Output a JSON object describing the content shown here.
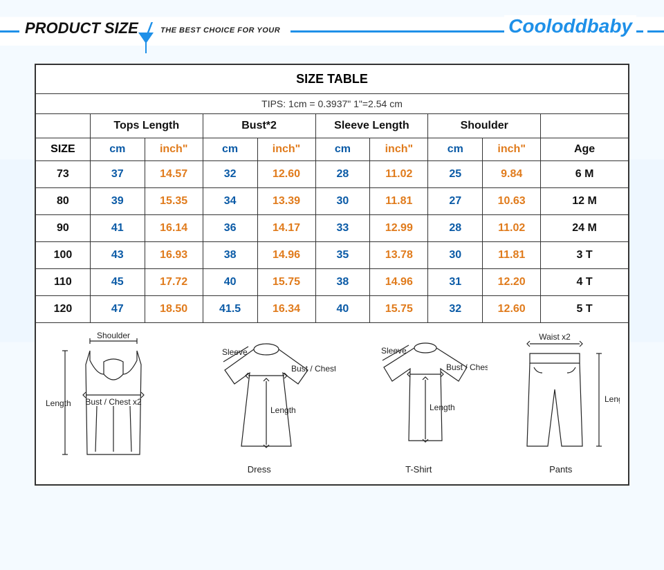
{
  "header": {
    "title": "PRODUCT SIZE",
    "slash": "/",
    "tagline": "THE BEST CHOICE FOR YOUR",
    "brand": "Cooloddbaby",
    "accent_color": "#1e90e8"
  },
  "table": {
    "title": "SIZE TABLE",
    "tips": "TIPS: 1cm = 0.3937\"   1\"=2.54 cm",
    "size_header": "SIZE",
    "age_header": "Age",
    "unit_cm": "cm",
    "unit_inch": "inch\"",
    "cm_color": "#0a5aa6",
    "inch_color": "#e07b1c",
    "text_color": "#111111",
    "border_color": "#333333",
    "background_color": "#ffffff",
    "groups": [
      "Tops Length",
      "Bust*2",
      "Sleeve Length",
      "Shoulder"
    ],
    "col_widths_pct": [
      9.2,
      9.2,
      9.8,
      9.2,
      9.8,
      9.2,
      9.8,
      9.2,
      9.8,
      14.8
    ],
    "rows": [
      {
        "size": "73",
        "tops_cm": "37",
        "tops_in": "14.57",
        "bust_cm": "32",
        "bust_in": "12.60",
        "sleeve_cm": "28",
        "sleeve_in": "11.02",
        "shoulder_cm": "25",
        "shoulder_in": "9.84",
        "age": "6 M"
      },
      {
        "size": "80",
        "tops_cm": "39",
        "tops_in": "15.35",
        "bust_cm": "34",
        "bust_in": "13.39",
        "sleeve_cm": "30",
        "sleeve_in": "11.81",
        "shoulder_cm": "27",
        "shoulder_in": "10.63",
        "age": "12 M"
      },
      {
        "size": "90",
        "tops_cm": "41",
        "tops_in": "16.14",
        "bust_cm": "36",
        "bust_in": "14.17",
        "sleeve_cm": "33",
        "sleeve_in": "12.99",
        "shoulder_cm": "28",
        "shoulder_in": "11.02",
        "age": "24 M"
      },
      {
        "size": "100",
        "tops_cm": "43",
        "tops_in": "16.93",
        "bust_cm": "38",
        "bust_in": "14.96",
        "sleeve_cm": "35",
        "sleeve_in": "13.78",
        "shoulder_cm": "30",
        "shoulder_in": "11.81",
        "age": "3 T"
      },
      {
        "size": "110",
        "tops_cm": "45",
        "tops_in": "17.72",
        "bust_cm": "40",
        "bust_in": "15.75",
        "sleeve_cm": "38",
        "sleeve_in": "14.96",
        "shoulder_cm": "31",
        "shoulder_in": "12.20",
        "age": "4 T"
      },
      {
        "size": "120",
        "tops_cm": "47",
        "tops_in": "18.50",
        "bust_cm": "41.5",
        "bust_in": "16.34",
        "sleeve_cm": "40",
        "sleeve_in": "15.75",
        "shoulder_cm": "32",
        "shoulder_in": "12.60",
        "age": "5 T"
      }
    ]
  },
  "diagrams": {
    "shoulder": "Shoulder",
    "bust": "Bust / Chest x2",
    "length": "Length",
    "sleeve": "Sleeve",
    "waist": "Waist x2",
    "dress": "Dress",
    "tshirt": "T-Shirt",
    "pants": "Pants"
  }
}
